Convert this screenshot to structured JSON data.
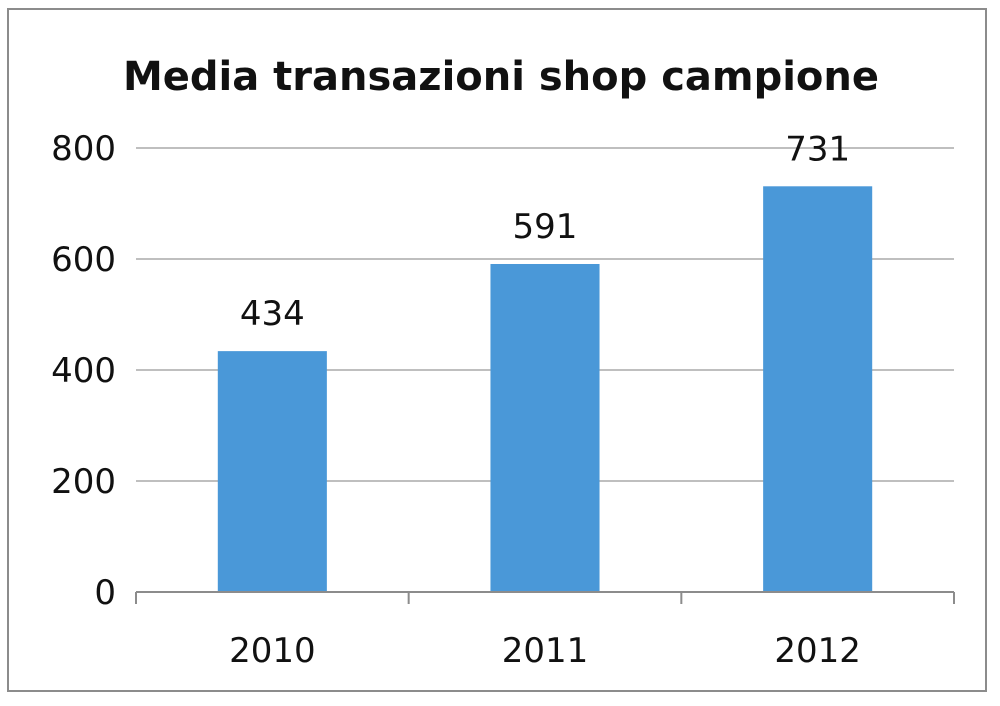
{
  "chart_data": {
    "type": "bar",
    "title": "Media transazioni shop campione",
    "categories": [
      "2010",
      "2011",
      "2012"
    ],
    "values": [
      434,
      591,
      731
    ],
    "ylim": [
      0,
      800
    ],
    "yticks": [
      0,
      200,
      400,
      600,
      800
    ],
    "grid": true,
    "legend": "none",
    "bar_color": "#4a98d8",
    "gridline_color": "#bfbfbf",
    "axis_color": "#8c8c8c",
    "data_labels": true
  }
}
